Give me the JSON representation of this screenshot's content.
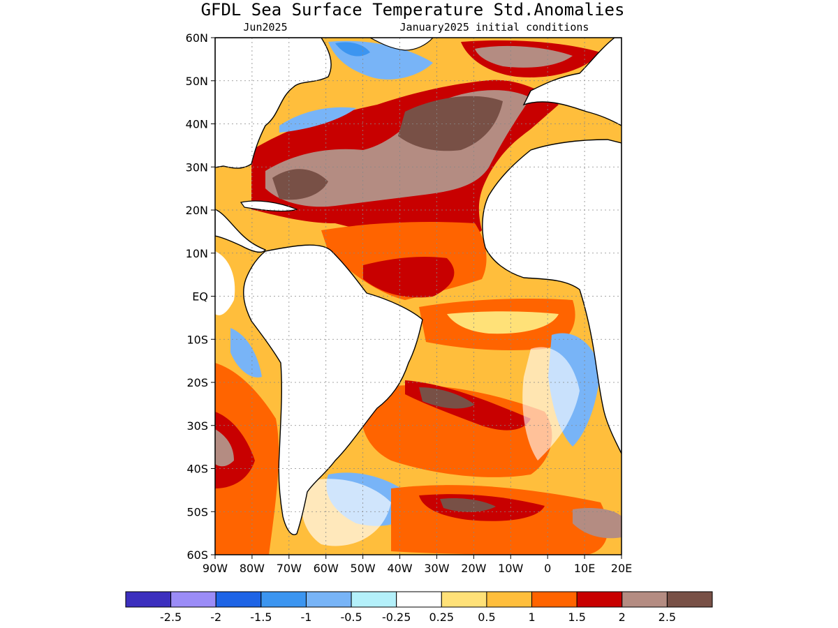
{
  "title": "GFDL Sea Surface Temperature Std.Anomalies",
  "subtitle_left": "Jun2025",
  "subtitle_right": "January2025 initial conditions",
  "map": {
    "lon_range": [
      -90,
      20
    ],
    "lat_range": [
      -60,
      60
    ],
    "lat_ticks": [
      {
        "value": 60,
        "label": "60N"
      },
      {
        "value": 50,
        "label": "50N"
      },
      {
        "value": 40,
        "label": "40N"
      },
      {
        "value": 30,
        "label": "30N"
      },
      {
        "value": 20,
        "label": "20N"
      },
      {
        "value": 10,
        "label": "10N"
      },
      {
        "value": 0,
        "label": "EQ"
      },
      {
        "value": -10,
        "label": "10S"
      },
      {
        "value": -20,
        "label": "20S"
      },
      {
        "value": -30,
        "label": "30S"
      },
      {
        "value": -40,
        "label": "40S"
      },
      {
        "value": -50,
        "label": "50S"
      },
      {
        "value": -60,
        "label": "60S"
      }
    ],
    "lon_ticks": [
      {
        "value": -90,
        "label": "90W"
      },
      {
        "value": -80,
        "label": "80W"
      },
      {
        "value": -70,
        "label": "70W"
      },
      {
        "value": -60,
        "label": "60W"
      },
      {
        "value": -50,
        "label": "50W"
      },
      {
        "value": -40,
        "label": "40W"
      },
      {
        "value": -30,
        "label": "30W"
      },
      {
        "value": -20,
        "label": "20W"
      },
      {
        "value": -10,
        "label": "10W"
      },
      {
        "value": 0,
        "label": "0"
      },
      {
        "value": 10,
        "label": "10E"
      },
      {
        "value": 20,
        "label": "20E"
      }
    ],
    "grid": true
  },
  "colorbar": {
    "colors": [
      "#3c2fbe",
      "#9b8cf7",
      "#1e64e6",
      "#3c95f0",
      "#78b4f7",
      "#b4f0fa",
      "#ffffff",
      "#ffe178",
      "#ffbe3c",
      "#ff6400",
      "#c80000",
      "#b48c82",
      "#785046"
    ],
    "labels": [
      "-2.5",
      "-2",
      "-1.5",
      "-1",
      "-0.5",
      "-0.25",
      "0.25",
      "0.5",
      "1",
      "1.5",
      "2",
      "2.5"
    ]
  }
}
